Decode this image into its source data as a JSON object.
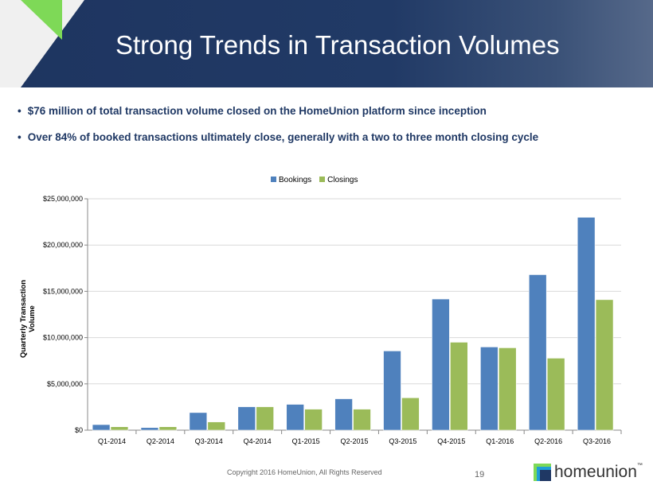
{
  "header": {
    "title": "Strong Trends in Transaction Volumes"
  },
  "bullets": [
    "$76 million of total transaction volume closed on the HomeUnion platform since inception",
    "Over 84% of booked transactions ultimately close, generally with a two to three month closing cycle"
  ],
  "bullet_symbol": "•",
  "chart_data": {
    "type": "bar",
    "title": "",
    "xlabel": "",
    "ylabel": "Quarterly Transaction Volume",
    "ylim": [
      0,
      25000000
    ],
    "yticks": [
      0,
      5000000,
      10000000,
      15000000,
      20000000,
      25000000
    ],
    "ytick_labels": [
      "$0",
      "$5,000,000",
      "$10,000,000",
      "$15,000,000",
      "$20,000,000",
      "$25,000,000"
    ],
    "grid": true,
    "legend_position": "top-center",
    "categories": [
      "Q1-2014",
      "Q2-2014",
      "Q3-2014",
      "Q4-2014",
      "Q1-2015",
      "Q2-2015",
      "Q3-2015",
      "Q4-2015",
      "Q1-2016",
      "Q2-2016",
      "Q3-2016"
    ],
    "series": [
      {
        "name": "Bookings",
        "color": "#4f81bd",
        "values": [
          600000,
          280000,
          1900000,
          2530000,
          2790000,
          3390000,
          8560000,
          14170000,
          8990000,
          16800000,
          23000000
        ]
      },
      {
        "name": "Closings",
        "color": "#9bbb59",
        "values": [
          370000,
          370000,
          890000,
          2530000,
          2270000,
          2270000,
          3500000,
          9500000,
          8900000,
          7780000,
          14100000
        ]
      }
    ]
  },
  "footer": {
    "copyright": "Copyright 2016 HomeUnion, All Rights Reserved",
    "page": "19",
    "logo_text": "homeunion",
    "logo_tm": "™"
  }
}
